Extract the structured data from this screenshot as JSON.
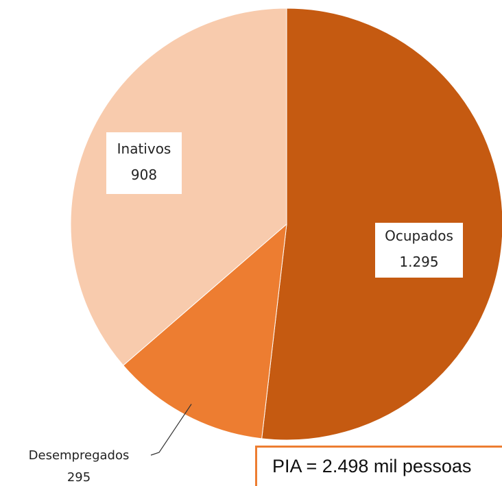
{
  "chart_data": {
    "type": "pie",
    "categories": [
      "Ocupados",
      "Desempregados",
      "Inativos"
    ],
    "values": [
      1295,
      295,
      908
    ],
    "value_labels": [
      "1.295",
      "295",
      "908"
    ],
    "colors": [
      "#c55a11",
      "#ed7d31",
      "#f8cbad"
    ],
    "annotation": "PIA  = 2.498 mil pessoas"
  }
}
